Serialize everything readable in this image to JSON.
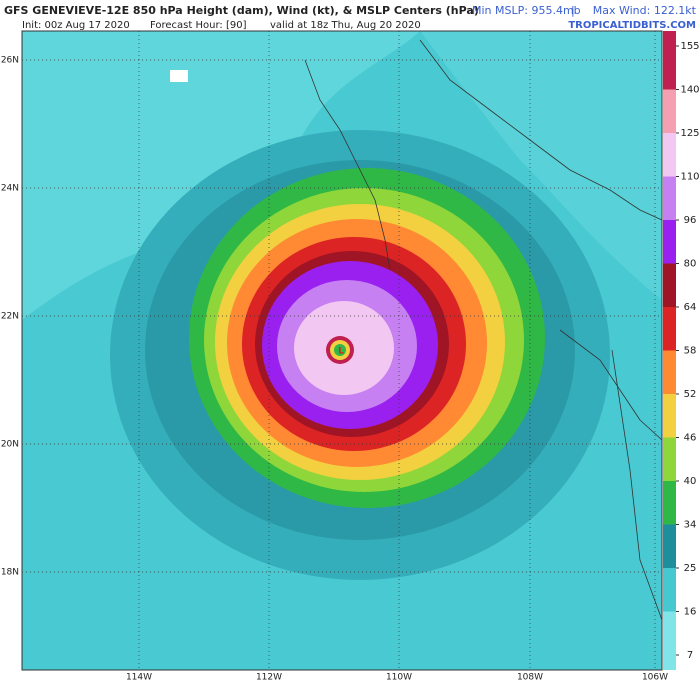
{
  "header": {
    "title": "GFS GENEVIEVE-12E 850 hPa Height (dam), Wind (kt), & MSLP Centers (hPa)",
    "min_mslp": "Min MSLP: 955.4mb",
    "separator": "|",
    "max_wind": "Max Wind: 122.1kt",
    "init": "Init: 00z Aug 17 2020",
    "forecast_hour": "Forecast Hour: [90]",
    "valid": "valid at 18z Thu, Aug 20 2020",
    "site": "TROPICALTIDBITS.COM"
  },
  "map": {
    "lat_labels": [
      "26N",
      "24N",
      "22N",
      "20N",
      "18N"
    ],
    "lon_labels": [
      "114W",
      "112W",
      "110W",
      "108W",
      "106W"
    ],
    "center_label": "L"
  },
  "colorbar": {
    "ticks": [
      7,
      16,
      25,
      34,
      40,
      46,
      52,
      58,
      64,
      80,
      96,
      110,
      125,
      140,
      155
    ],
    "colors": [
      "#80e4e8",
      "#45c8d0",
      "#1f8e9c",
      "#2fb845",
      "#8fd63a",
      "#f2d040",
      "#ff8a33",
      "#dd2424",
      "#a01525",
      "#9a20f0",
      "#c680f2",
      "#f2c8f2",
      "#f5a0b0",
      "#c02050"
    ]
  }
}
